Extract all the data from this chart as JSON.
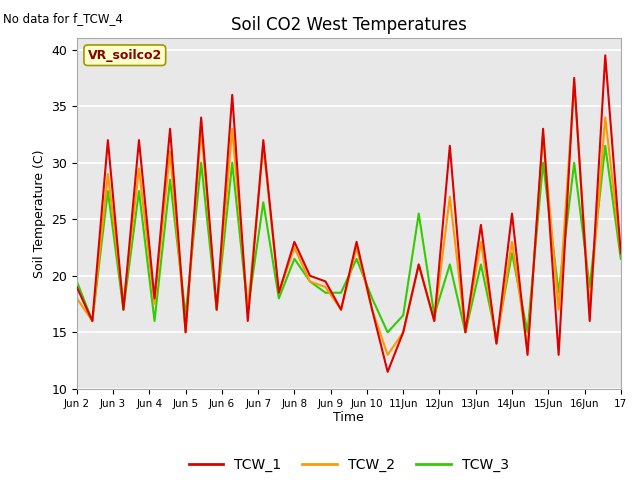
{
  "title": "Soil CO2 West Temperatures",
  "xlabel": "Time",
  "ylabel": "Soil Temperature (C)",
  "no_data_text": "No data for f_TCW_4",
  "annotation_text": "VR_soilco2",
  "ylim": [
    10,
    41
  ],
  "yticks": [
    10,
    15,
    20,
    25,
    30,
    35,
    40
  ],
  "xtick_labels": [
    "Jun 2",
    "Jun 3",
    "Jun 4",
    "Jun 5",
    "Jun 6",
    "Jun 7",
    "Jun 8",
    "Jun 9",
    "Jun 10",
    "11Jun",
    "12Jun",
    "13Jun",
    "14Jun",
    "15Jun",
    "16Jun",
    "17"
  ],
  "colors": {
    "TCW_1": "#dd0000",
    "TCW_2": "#ff9900",
    "TCW_3": "#33cc00"
  },
  "background_color": "#e8e8e8",
  "TCW_1": [
    19,
    16,
    32,
    17,
    32,
    18,
    33,
    15,
    34,
    17,
    36,
    16,
    32,
    18.5,
    23,
    20,
    19.5,
    17,
    23,
    17,
    11.5,
    15,
    21,
    16,
    31.5,
    15,
    24.5,
    14,
    25.5,
    13,
    33,
    13,
    37.5,
    16,
    39.5,
    22
  ],
  "TCW_2": [
    18,
    16,
    29,
    17.5,
    29.5,
    17.5,
    31,
    15,
    33,
    17,
    33,
    17,
    31.5,
    18.5,
    22.5,
    19.5,
    19,
    17,
    22.5,
    17,
    13,
    15,
    21,
    16,
    27,
    15,
    23,
    14,
    23,
    13.5,
    32.5,
    17,
    37,
    17,
    34,
    22
  ],
  "TCW_3": [
    19.5,
    16,
    27.5,
    17,
    27.5,
    16,
    28.5,
    16.5,
    30,
    17,
    30,
    17,
    26.5,
    18,
    21.5,
    19.5,
    18.5,
    18.5,
    21.5,
    18,
    15,
    16.5,
    25.5,
    16.5,
    21,
    15,
    21,
    14.5,
    22,
    15,
    30,
    18.5,
    30,
    19,
    31.5,
    21.5
  ],
  "n_points": 36,
  "line_width": 1.5
}
